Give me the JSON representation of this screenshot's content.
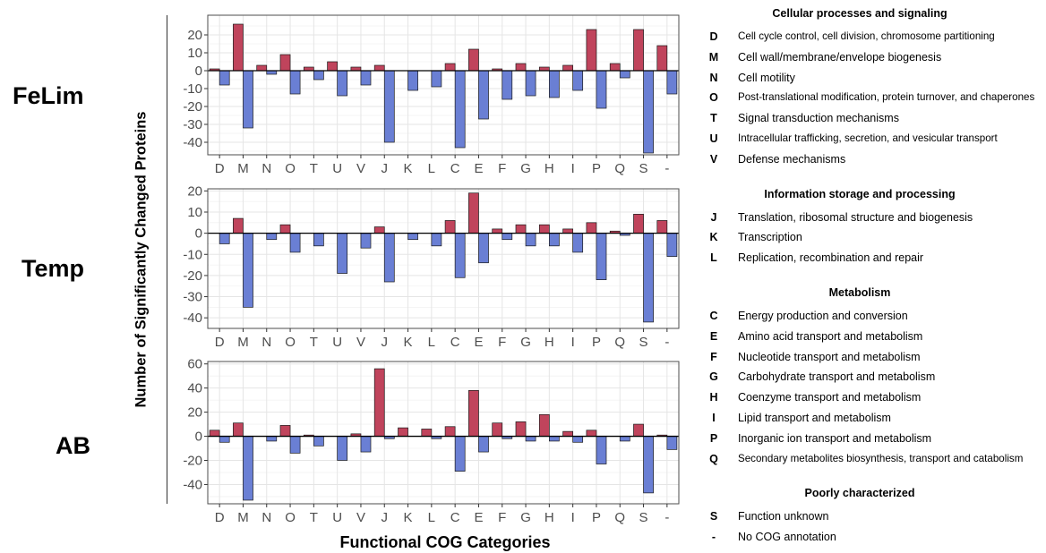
{
  "figure": {
    "row_labels": [
      "FeLim",
      "Temp",
      "AB"
    ],
    "ylabel": "Number of Significantly Changed Proteins",
    "xlabel": "Functional COG Categories",
    "colors": {
      "up": "#c0445c",
      "down": "#6a7fd4",
      "grid": "#e5e5e5",
      "panel_border": "#4d4d4d",
      "zero_line": "#000000"
    }
  },
  "chart_data": [
    {
      "type": "bar",
      "title": "FeLim",
      "categories": [
        "D",
        "M",
        "N",
        "O",
        "T",
        "U",
        "V",
        "J",
        "K",
        "L",
        "C",
        "E",
        "F",
        "G",
        "H",
        "I",
        "P",
        "Q",
        "S",
        "-"
      ],
      "ylim": [
        -47,
        31
      ],
      "yticks": [
        20,
        10,
        0,
        -10,
        -20,
        -30,
        -40
      ],
      "grid": true,
      "series": [
        {
          "values": [
            1,
            26,
            3,
            9,
            2,
            5,
            2,
            3,
            0,
            0,
            4,
            12,
            1,
            4,
            2,
            3,
            23,
            4,
            23,
            14
          ]
        },
        {
          "values": [
            -8,
            -32,
            -2,
            -13,
            -5,
            -14,
            -8,
            -40,
            -11,
            -9,
            -43,
            -27,
            -16,
            -14,
            -15,
            -11,
            -21,
            -4,
            -46,
            -13
          ]
        }
      ]
    },
    {
      "type": "bar",
      "title": "Temp",
      "categories": [
        "D",
        "M",
        "N",
        "O",
        "T",
        "U",
        "V",
        "J",
        "K",
        "L",
        "C",
        "E",
        "F",
        "G",
        "H",
        "I",
        "P",
        "Q",
        "S",
        "-"
      ],
      "ylim": [
        -45,
        21
      ],
      "yticks": [
        20,
        10,
        0,
        -10,
        -20,
        -30,
        -40
      ],
      "grid": true,
      "series": [
        {
          "values": [
            0,
            7,
            0,
            4,
            0,
            0,
            0,
            3,
            0,
            0,
            6,
            19,
            2,
            4,
            4,
            2,
            5,
            1,
            9,
            6
          ]
        },
        {
          "values": [
            -5,
            -35,
            -3,
            -9,
            -6,
            -19,
            -7,
            -23,
            -3,
            -6,
            -21,
            -14,
            -3,
            -6,
            -6,
            -9,
            -22,
            -1,
            -42,
            -11
          ]
        }
      ]
    },
    {
      "type": "bar",
      "title": "AB",
      "categories": [
        "D",
        "M",
        "N",
        "O",
        "T",
        "U",
        "V",
        "J",
        "K",
        "L",
        "C",
        "E",
        "F",
        "G",
        "H",
        "I",
        "P",
        "Q",
        "S",
        "-"
      ],
      "ylim": [
        -56,
        62
      ],
      "yticks": [
        60,
        40,
        20,
        0,
        -20,
        -40
      ],
      "grid": true,
      "series": [
        {
          "values": [
            5,
            11,
            0,
            9,
            1,
            0,
            2,
            56,
            7,
            6,
            8,
            38,
            11,
            12,
            18,
            4,
            5,
            0,
            10,
            1
          ]
        },
        {
          "values": [
            -5,
            -53,
            -4,
            -14,
            -8,
            -20,
            -13,
            -2,
            0,
            -2,
            -29,
            -13,
            -2,
            -4,
            -4,
            -5,
            -23,
            -4,
            -47,
            -11
          ]
        }
      ]
    }
  ],
  "legend": {
    "groups": [
      {
        "title": "Cellular processes and signaling",
        "items": [
          {
            "code": "D",
            "desc": "Cell cycle control, cell division, chromosome partitioning"
          },
          {
            "code": "M",
            "desc": "Cell wall/membrane/envelope biogenesis"
          },
          {
            "code": "N",
            "desc": "Cell motility"
          },
          {
            "code": "O",
            "desc": "Post-translational modification, protein turnover, and chaperones"
          },
          {
            "code": "T",
            "desc": "Signal transduction mechanisms"
          },
          {
            "code": "U",
            "desc": "Intracellular trafficking, secretion, and vesicular transport"
          },
          {
            "code": "V",
            "desc": "Defense mechanisms"
          }
        ]
      },
      {
        "title": "Information storage and processing",
        "items": [
          {
            "code": "J",
            "desc": "Translation, ribosomal structure and biogenesis"
          },
          {
            "code": "K",
            "desc": "Transcription"
          },
          {
            "code": "L",
            "desc": "Replication, recombination and repair"
          }
        ]
      },
      {
        "title": "Metabolism",
        "items": [
          {
            "code": "C",
            "desc": "Energy production and conversion"
          },
          {
            "code": "E",
            "desc": "Amino acid transport and metabolism"
          },
          {
            "code": "F",
            "desc": "Nucleotide transport and metabolism"
          },
          {
            "code": "G",
            "desc": "Carbohydrate transport and metabolism"
          },
          {
            "code": "H",
            "desc": "Coenzyme transport and metabolism"
          },
          {
            "code": "I",
            "desc": "Lipid transport and metabolism"
          },
          {
            "code": "P",
            "desc": "Inorganic ion transport and metabolism"
          },
          {
            "code": "Q",
            "desc": "Secondary metabolites biosynthesis, transport and catabolism"
          }
        ]
      },
      {
        "title": "Poorly characterized",
        "items": [
          {
            "code": "S",
            "desc": "Function unknown"
          },
          {
            "code": "-",
            "desc": "No COG annotation"
          }
        ]
      }
    ]
  }
}
